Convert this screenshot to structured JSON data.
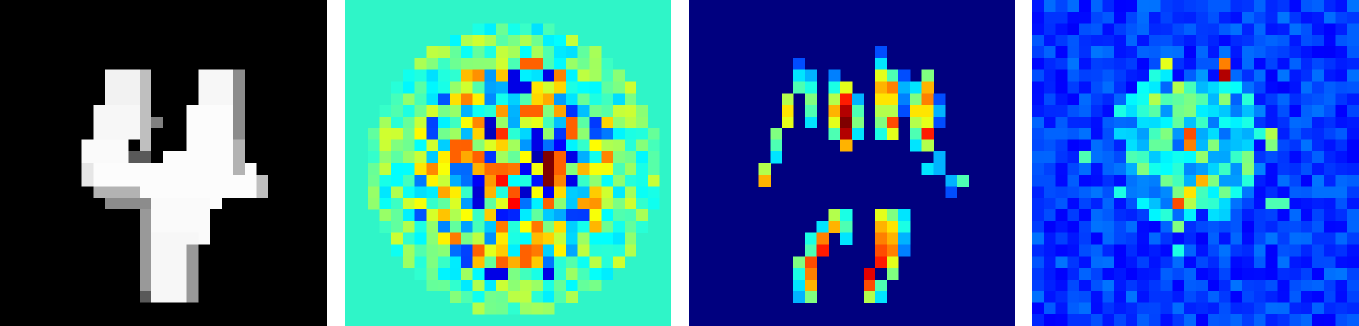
{
  "panels": [
    {
      "id": "input-digit",
      "colormap": "gray",
      "background": "#000000"
    },
    {
      "id": "signed-attribution",
      "colormap": "jet",
      "background": "#2ff5c8"
    },
    {
      "id": "positive-attribution",
      "colormap": "jet",
      "background": "#00007f"
    },
    {
      "id": "noisy-attribution",
      "colormap": "jet",
      "background": "#0000b8"
    }
  ]
}
